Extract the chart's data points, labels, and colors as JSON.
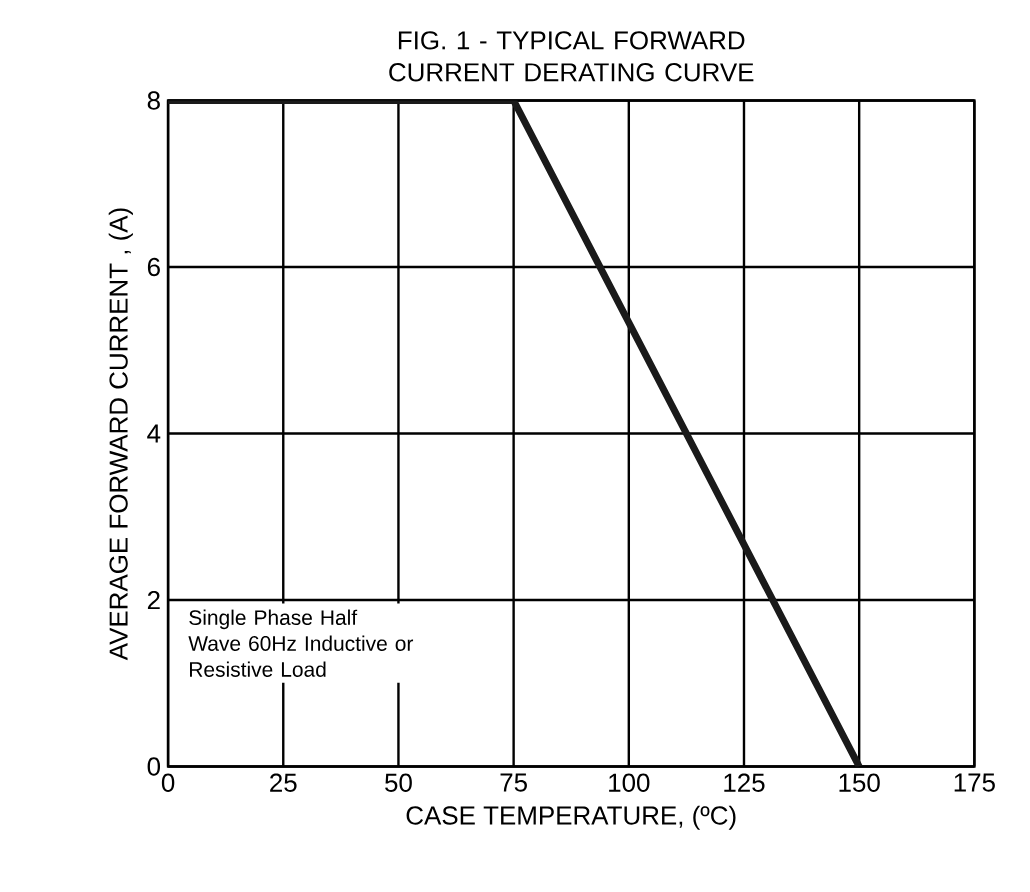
{
  "chart_data": {
    "type": "line",
    "title": "FIG. 1 - TYPICAL FORWARD CURRENT DERATING CURVE",
    "xlabel": "CASE TEMPERATURE, (ºC)",
    "ylabel": "AVERAGE FORWARD CURRENT , (A)",
    "annotations": [
      "Single Phase Half Wave 60Hz Inductive or Resistive Load"
    ],
    "x": [
      0,
      75,
      150
    ],
    "series": [
      {
        "color": "#1a1a1a",
        "values": [
          8,
          8,
          0
        ]
      }
    ],
    "xlim": [
      0,
      175
    ],
    "xticks": [
      0,
      25,
      50,
      75,
      100,
      125,
      150,
      175
    ],
    "ylim": [
      0,
      8
    ],
    "yticks": [
      0,
      2,
      4,
      6,
      8
    ],
    "grid": true,
    "line_style": "solid",
    "marker": "none"
  }
}
